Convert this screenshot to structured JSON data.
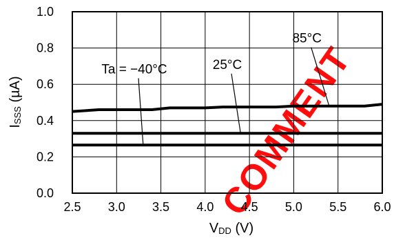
{
  "chart_data": {
    "type": "line",
    "xlabel_main": "V",
    "xlabel_sub": "DD",
    "xlabel_unit": " (V)",
    "ylabel_main": "I",
    "ylabel_sub": "SSS",
    "ylabel_unit": " (µA)",
    "xlim": [
      2.5,
      6.0
    ],
    "ylim": [
      0.0,
      1.0
    ],
    "xticks": [
      "2.5",
      "3.0",
      "3.5",
      "4.0",
      "4.5",
      "5.0",
      "5.5",
      "6.0"
    ],
    "yticks": [
      "0.0",
      "0.2",
      "0.4",
      "0.6",
      "0.8",
      "1.0"
    ],
    "grid": true,
    "series": [
      {
        "name": "Ta = −40°C",
        "x": [
          2.5,
          6.0
        ],
        "y": [
          0.265,
          0.265
        ]
      },
      {
        "name": "25°C",
        "x": [
          2.5,
          6.0
        ],
        "y": [
          0.33,
          0.33
        ]
      },
      {
        "name": "85°C",
        "x": [
          2.5,
          2.8,
          3.0,
          3.4,
          3.6,
          4.0,
          4.2,
          4.8,
          5.0,
          5.8,
          6.0
        ],
        "y": [
          0.45,
          0.46,
          0.46,
          0.46,
          0.47,
          0.47,
          0.475,
          0.475,
          0.48,
          0.48,
          0.49
        ]
      }
    ],
    "annotations": [
      {
        "text": "Ta = −40°C",
        "series": 0,
        "point": [
          3.3,
          0.265
        ],
        "label_at": [
          3.2,
          0.66
        ]
      },
      {
        "text": "25°C",
        "series": 1,
        "point": [
          4.4,
          0.33
        ],
        "label_at": [
          4.25,
          0.685
        ]
      },
      {
        "text": "85°C",
        "series": 2,
        "point": [
          5.4,
          0.48
        ],
        "label_at": [
          5.15,
          0.83
        ]
      }
    ],
    "watermark": "COMMENT",
    "watermark_color": "#ff0000",
    "line_color": "#000000"
  }
}
